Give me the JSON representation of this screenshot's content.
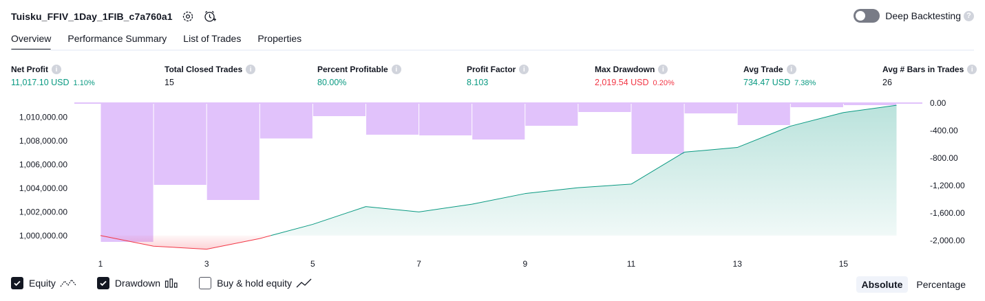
{
  "header": {
    "strategy_title": "Tuisku_FFIV_1Day_1FIB_c7a760a1",
    "settings_icon": "gear-icon",
    "add_alert_icon": "alarm-clock-plus-icon",
    "deep_backtesting_label": "Deep Backtesting",
    "deep_backtesting_enabled": false,
    "help_icon": "question-icon"
  },
  "tabs": [
    {
      "label": "Overview",
      "active": true
    },
    {
      "label": "Performance Summary",
      "active": false
    },
    {
      "label": "List of Trades",
      "active": false
    },
    {
      "label": "Properties",
      "active": false
    }
  ],
  "stats": [
    {
      "label": "Net Profit",
      "value": "11,017.10 USD",
      "pct": "1.10%",
      "color": "#089981"
    },
    {
      "label": "Total Closed Trades",
      "value": "15",
      "pct": "",
      "color": "#131722"
    },
    {
      "label": "Percent Profitable",
      "value": "80.00%",
      "pct": "",
      "color": "#089981"
    },
    {
      "label": "Profit Factor",
      "value": "8.103",
      "pct": "",
      "color": "#089981"
    },
    {
      "label": "Max Drawdown",
      "value": "2,019.54 USD",
      "pct": "0.20%",
      "color": "#f23645"
    },
    {
      "label": "Avg Trade",
      "value": "734.47 USD",
      "pct": "7.38%",
      "color": "#089981"
    },
    {
      "label": "Avg # Bars in Trades",
      "value": "26",
      "pct": "",
      "color": "#131722"
    }
  ],
  "legend": {
    "equity_label": "Equity",
    "equity_checked": true,
    "drawdown_label": "Drawdown",
    "drawdown_checked": true,
    "buyhold_label": "Buy & hold equity",
    "buyhold_checked": false
  },
  "mode": {
    "absolute_label": "Absolute",
    "percentage_label": "Percentage",
    "active": "Absolute"
  },
  "chart_data": {
    "type": "area",
    "x_ticks": [
      "1",
      "3",
      "5",
      "7",
      "9",
      "11",
      "13",
      "15"
    ],
    "left_axis": {
      "ticks": [
        "1,010,000.00",
        "1,008,000.00",
        "1,006,000.00",
        "1,004,000.00",
        "1,002,000.00",
        "1,000,000.00"
      ],
      "tick_values": [
        1010000,
        1008000,
        1006000,
        1004000,
        1002000,
        1000000
      ],
      "ylim": [
        999000,
        1011200
      ]
    },
    "right_axis": {
      "ticks": [
        "0.00",
        "-400.00",
        "-800.00",
        "-1,200.00",
        "-1,600.00",
        "-2,000.00"
      ],
      "tick_values": [
        0,
        -400,
        -800,
        -1200,
        -1600,
        -2000
      ],
      "ylim": [
        -2100,
        0
      ]
    },
    "series": [
      {
        "name": "Equity",
        "color_up": "#089981",
        "color_down": "#f23645",
        "baseline": 1000000,
        "x": [
          1,
          2,
          3,
          4,
          5,
          6,
          7,
          8,
          9,
          10,
          11,
          12,
          13,
          14,
          15,
          16
        ],
        "values": [
          1000000,
          999100,
          998850,
          999750,
          1000950,
          1002450,
          1002000,
          1002650,
          1003550,
          1004050,
          1004350,
          1007050,
          1007450,
          1009250,
          1010400,
          1011017.1
        ]
      },
      {
        "name": "Drawdown",
        "color": "#e1c2fb",
        "x": [
          1,
          2,
          3,
          4,
          5,
          6,
          7,
          8,
          9,
          10,
          11,
          12,
          13,
          14,
          15,
          16
        ],
        "values": [
          0,
          -2019.54,
          -1190,
          -1410,
          -515,
          -190,
          -460,
          -470,
          -530,
          -330,
          -130,
          -740,
          -150,
          -320,
          -60,
          -30
        ]
      }
    ]
  }
}
